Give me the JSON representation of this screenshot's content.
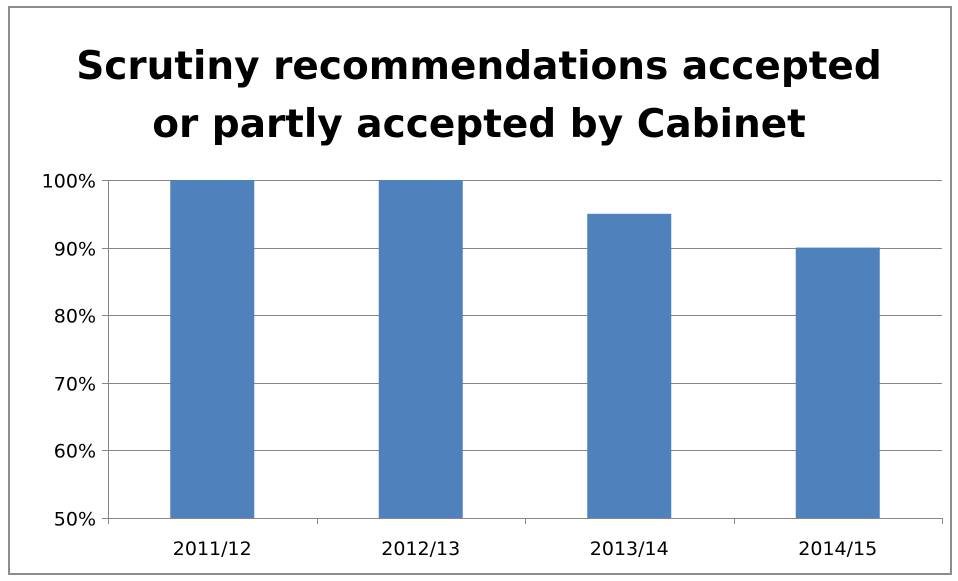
{
  "chart_data": {
    "type": "bar",
    "title_lines": [
      "Scrutiny recommendations accepted",
      "or partly accepted by Cabinet"
    ],
    "categories": [
      "2011/12",
      "2012/13",
      "2013/14",
      "2014/15"
    ],
    "values": [
      100,
      100,
      95,
      90
    ],
    "value_unit": "%",
    "ylim": [
      50,
      100
    ],
    "yticks": [
      50,
      60,
      70,
      80,
      90,
      100
    ],
    "ytick_labels": [
      "50%",
      "60%",
      "70%",
      "80%",
      "90%",
      "100%"
    ],
    "xlabel": "",
    "ylabel": "",
    "grid": true,
    "legend": "none",
    "colors": {
      "bar": "#4f81bd",
      "grid": "#868686",
      "frame": "#8c8c8c"
    }
  }
}
